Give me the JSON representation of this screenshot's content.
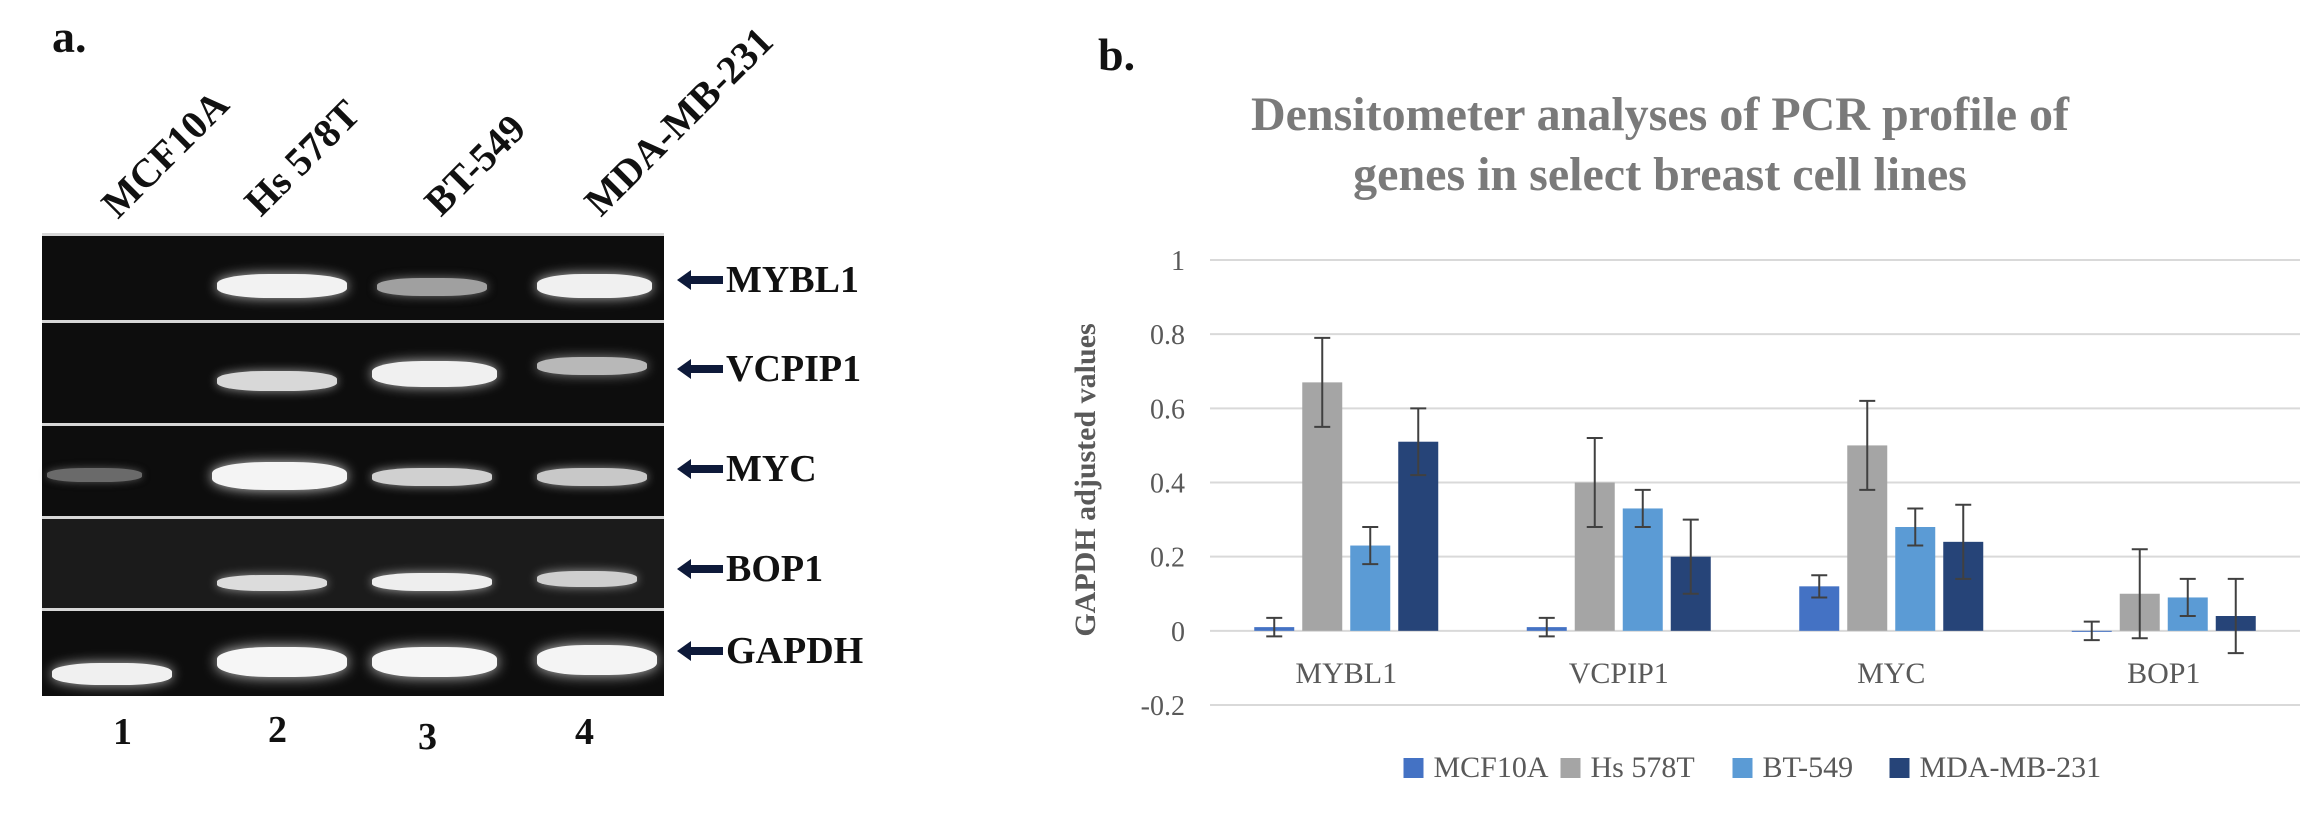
{
  "panel_a": {
    "label": "a.",
    "lanes": [
      "MCF10A",
      "Hs 578T",
      "BT-549",
      "MDA-MB-231"
    ],
    "lane_numbers": [
      "1",
      "2",
      "3",
      "4"
    ],
    "genes": [
      "MYBL1",
      "VCPIP1",
      "MYC",
      "BOP1",
      "GAPDH"
    ]
  },
  "panel_b": {
    "label": "b."
  },
  "chart_data": {
    "type": "bar",
    "title": "Densitometer analyses of PCR profile of genes in select breast cell lines",
    "title_lines": [
      "Densitometer analyses of PCR profile of",
      "genes in select breast cell lines"
    ],
    "xlabel": "",
    "ylabel": "GAPDH adjusted values",
    "ylim": [
      -0.2,
      1
    ],
    "yticks": [
      -0.2,
      0,
      0.2,
      0.4,
      0.6,
      0.8,
      1
    ],
    "ytick_labels": [
      "-0.2",
      "0",
      "0.2",
      "0.4",
      "0.6",
      "0.8",
      "1"
    ],
    "grid": true,
    "legend_position": "bottom",
    "categories": [
      "MYBL1",
      "VCPIP1",
      "MYC",
      "BOP1"
    ],
    "series": [
      {
        "name": "MCF10A",
        "color": "#4472c4",
        "values": [
          0.01,
          0.01,
          0.12,
          0.0
        ],
        "errors": [
          0.025,
          0.025,
          0.03,
          0.025
        ]
      },
      {
        "name": "Hs 578T",
        "color": "#a5a5a5",
        "values": [
          0.67,
          0.4,
          0.5,
          0.1
        ],
        "errors": [
          0.12,
          0.12,
          0.12,
          0.12
        ]
      },
      {
        "name": "BT-549",
        "color": "#5b9bd5",
        "values": [
          0.23,
          0.33,
          0.28,
          0.09
        ],
        "errors": [
          0.05,
          0.05,
          0.05,
          0.05
        ]
      },
      {
        "name": "MDA-MB-231",
        "color": "#264478",
        "values": [
          0.51,
          0.2,
          0.24,
          0.04
        ],
        "errors": [
          0.09,
          0.1,
          0.1,
          0.1
        ]
      }
    ]
  }
}
